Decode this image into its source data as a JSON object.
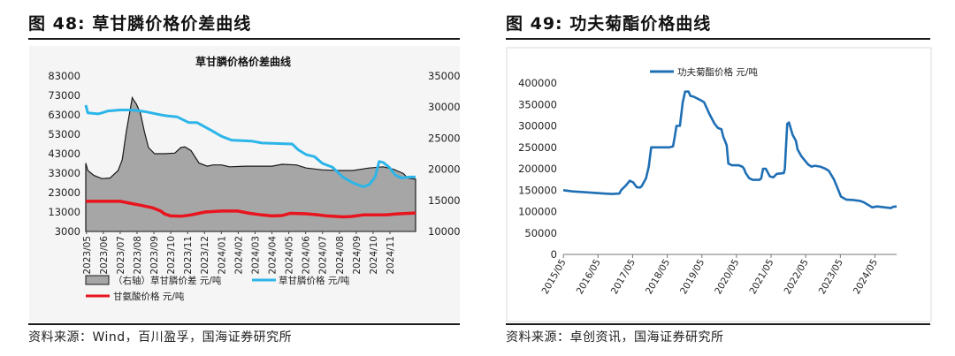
{
  "figures": [
    {
      "title": "图 48:  草甘膦价格价差曲线",
      "source": "资料来源：Wind，百川盈孚，国海证券研究所"
    },
    {
      "title": "图 49:  功夫菊酯价格曲线",
      "source": "资料来源：卓创资讯，国海证券研究所"
    }
  ],
  "chart_data": [
    {
      "type": "area",
      "title": "草甘膦价格价差曲线",
      "x_categories": [
        "2023/05",
        "2023/06",
        "2023/07",
        "2023/08",
        "2023/09",
        "2023/10",
        "2023/11",
        "2023/12",
        "2024/01",
        "2024/02",
        "2024/03",
        "2024/04",
        "2024/05",
        "2024/06",
        "2024/07",
        "2024/08",
        "2024/09",
        "2024/10",
        "2024/11"
      ],
      "x_range": [
        2023.33,
        2024.96
      ],
      "left_axis": {
        "ticks": [
          "83000",
          "73000",
          "63000",
          "53000",
          "43000",
          "33000",
          "23000",
          "13000",
          "3000"
        ],
        "ylim": [
          3000,
          83000
        ]
      },
      "right_axis": {
        "ticks": [
          "35000",
          "30000",
          "25000",
          "20000",
          "15000",
          "10000"
        ],
        "ylim": [
          10000,
          35000
        ]
      },
      "legend_position": "bottom",
      "series": [
        {
          "name": "（右轴）草甘膦价差  元/吨",
          "axis": "right",
          "style": "area",
          "color": "#a6a6a6",
          "points": [
            [
              2023.33,
              21000
            ],
            [
              2023.34,
              19800
            ],
            [
              2023.37,
              19000
            ],
            [
              2023.41,
              18500
            ],
            [
              2023.45,
              18600
            ],
            [
              2023.49,
              19800
            ],
            [
              2023.51,
              21500
            ],
            [
              2023.53,
              26000
            ],
            [
              2023.56,
              31500
            ],
            [
              2023.565,
              31200
            ],
            [
              2023.58,
              30500
            ],
            [
              2023.6,
              29000
            ],
            [
              2023.62,
              26000
            ],
            [
              2023.64,
              23500
            ],
            [
              2023.67,
              22500
            ],
            [
              2023.72,
              22500
            ],
            [
              2023.77,
              22600
            ],
            [
              2023.8,
              23500
            ],
            [
              2023.82,
              23600
            ],
            [
              2023.85,
              23000
            ],
            [
              2023.89,
              21000
            ],
            [
              2023.93,
              20500
            ],
            [
              2023.96,
              20700
            ],
            [
              2024.0,
              20700
            ],
            [
              2024.04,
              20400
            ],
            [
              2024.12,
              20500
            ],
            [
              2024.25,
              20500
            ],
            [
              2024.3,
              20800
            ],
            [
              2024.37,
              20700
            ],
            [
              2024.42,
              20200
            ],
            [
              2024.5,
              19900
            ],
            [
              2024.58,
              19800
            ],
            [
              2024.65,
              19800
            ],
            [
              2024.73,
              20200
            ],
            [
              2024.8,
              20400
            ],
            [
              2024.85,
              20000
            ],
            [
              2024.9,
              19300
            ],
            [
              2024.92,
              18600
            ],
            [
              2024.96,
              18400
            ]
          ]
        },
        {
          "name": "草甘膦价格  元/吨",
          "axis": "left",
          "style": "line",
          "color": "#2cb5e8",
          "points": [
            [
              2023.33,
              68000
            ],
            [
              2023.34,
              64000
            ],
            [
              2023.39,
              63500
            ],
            [
              2023.41,
              64000
            ],
            [
              2023.44,
              65000
            ],
            [
              2023.5,
              65500
            ],
            [
              2023.56,
              65500
            ],
            [
              2023.6,
              65000
            ],
            [
              2023.63,
              64500
            ],
            [
              2023.7,
              63000
            ],
            [
              2023.73,
              62500
            ],
            [
              2023.78,
              62000
            ],
            [
              2023.84,
              59000
            ],
            [
              2023.88,
              59000
            ],
            [
              2023.95,
              55000
            ],
            [
              2024.0,
              52000
            ],
            [
              2024.05,
              50000
            ],
            [
              2024.15,
              49500
            ],
            [
              2024.2,
              48500
            ],
            [
              2024.35,
              48000
            ],
            [
              2024.38,
              45000
            ],
            [
              2024.42,
              42500
            ],
            [
              2024.46,
              41500
            ],
            [
              2024.5,
              38000
            ],
            [
              2024.55,
              36000
            ],
            [
              2024.6,
              31000
            ],
            [
              2024.65,
              28000
            ],
            [
              2024.7,
              26000
            ],
            [
              2024.73,
              27000
            ],
            [
              2024.76,
              31000
            ],
            [
              2024.78,
              39000
            ],
            [
              2024.8,
              38500
            ],
            [
              2024.83,
              36000
            ],
            [
              2024.86,
              32000
            ],
            [
              2024.89,
              30500
            ],
            [
              2024.93,
              31000
            ],
            [
              2024.96,
              31000
            ]
          ]
        },
        {
          "name": "甘氨酸价格  元/吨",
          "axis": "left",
          "style": "line",
          "color": "#e8141e",
          "points": [
            [
              2023.33,
              18500
            ],
            [
              2023.5,
              18500
            ],
            [
              2023.55,
              17500
            ],
            [
              2023.6,
              16500
            ],
            [
              2023.66,
              15200
            ],
            [
              2023.7,
              13500
            ],
            [
              2023.72,
              12000
            ],
            [
              2023.75,
              11000
            ],
            [
              2023.8,
              10800
            ],
            [
              2023.85,
              11500
            ],
            [
              2023.92,
              13000
            ],
            [
              2024.0,
              13500
            ],
            [
              2024.08,
              13500
            ],
            [
              2024.14,
              12300
            ],
            [
              2024.2,
              11500
            ],
            [
              2024.25,
              11000
            ],
            [
              2024.3,
              11200
            ],
            [
              2024.34,
              12300
            ],
            [
              2024.42,
              12100
            ],
            [
              2024.48,
              11500
            ],
            [
              2024.52,
              11000
            ],
            [
              2024.6,
              10500
            ],
            [
              2024.64,
              10700
            ],
            [
              2024.7,
              11500
            ],
            [
              2024.82,
              11600
            ],
            [
              2024.86,
              12000
            ],
            [
              2024.96,
              12500
            ]
          ]
        }
      ]
    },
    {
      "type": "line",
      "title": "",
      "x_categories": [
        "2015/05",
        "2016/05",
        "2017/05",
        "2018/05",
        "2019/05",
        "2020/05",
        "2021/05",
        "2022/05",
        "2023/05",
        "2024/05"
      ],
      "x_range": [
        2015.33,
        2024.96
      ],
      "y_ticks": [
        "400000",
        "350000",
        "300000",
        "250000",
        "200000",
        "150000",
        "100000",
        "50000",
        "0"
      ],
      "ylim": [
        0,
        400000
      ],
      "legend_position": "top",
      "series": [
        {
          "name": "功夫菊酯价格  元/吨",
          "color": "#1f6fb5",
          "points": [
            [
              2015.33,
              150000
            ],
            [
              2015.6,
              147000
            ],
            [
              2016.0,
              145000
            ],
            [
              2016.5,
              142000
            ],
            [
              2016.75,
              141000
            ],
            [
              2016.95,
              142000
            ],
            [
              2017.0,
              150000
            ],
            [
              2017.15,
              162000
            ],
            [
              2017.25,
              172000
            ],
            [
              2017.35,
              168000
            ],
            [
              2017.45,
              157000
            ],
            [
              2017.55,
              156000
            ],
            [
              2017.6,
              160000
            ],
            [
              2017.72,
              178000
            ],
            [
              2017.8,
              205000
            ],
            [
              2017.87,
              250000
            ],
            [
              2018.0,
              250000
            ],
            [
              2018.4,
              250000
            ],
            [
              2018.5,
              252000
            ],
            [
              2018.55,
              275000
            ],
            [
              2018.6,
              300000
            ],
            [
              2018.7,
              300000
            ],
            [
              2018.78,
              355000
            ],
            [
              2018.85,
              380000
            ],
            [
              2018.95,
              380000
            ],
            [
              2019.0,
              370000
            ],
            [
              2019.1,
              368000
            ],
            [
              2019.3,
              360000
            ],
            [
              2019.4,
              355000
            ],
            [
              2019.55,
              328000
            ],
            [
              2019.7,
              305000
            ],
            [
              2019.8,
              295000
            ],
            [
              2019.9,
              292000
            ],
            [
              2019.95,
              275000
            ],
            [
              2020.05,
              255000
            ],
            [
              2020.1,
              212000
            ],
            [
              2020.2,
              208000
            ],
            [
              2020.4,
              208000
            ],
            [
              2020.5,
              205000
            ],
            [
              2020.55,
              200000
            ],
            [
              2020.6,
              190000
            ],
            [
              2020.7,
              178000
            ],
            [
              2020.8,
              174000
            ],
            [
              2021.0,
              174000
            ],
            [
              2021.05,
              178000
            ],
            [
              2021.1,
              200000
            ],
            [
              2021.18,
              200000
            ],
            [
              2021.3,
              182000
            ],
            [
              2021.4,
              180000
            ],
            [
              2021.5,
              188000
            ],
            [
              2021.7,
              190000
            ],
            [
              2021.73,
              200000
            ],
            [
              2021.76,
              245000
            ],
            [
              2021.8,
              305000
            ],
            [
              2021.85,
              308000
            ],
            [
              2021.88,
              300000
            ],
            [
              2021.95,
              280000
            ],
            [
              2022.05,
              265000
            ],
            [
              2022.1,
              245000
            ],
            [
              2022.2,
              230000
            ],
            [
              2022.3,
              220000
            ],
            [
              2022.4,
              210000
            ],
            [
              2022.5,
              205000
            ],
            [
              2022.6,
              207000
            ],
            [
              2022.75,
              205000
            ],
            [
              2022.9,
              200000
            ],
            [
              2023.0,
              195000
            ],
            [
              2023.15,
              175000
            ],
            [
              2023.25,
              155000
            ],
            [
              2023.35,
              135000
            ],
            [
              2023.5,
              128000
            ],
            [
              2023.7,
              127000
            ],
            [
              2023.9,
              125000
            ],
            [
              2024.0,
              122000
            ],
            [
              2024.15,
              115000
            ],
            [
              2024.25,
              110000
            ],
            [
              2024.4,
              112000
            ],
            [
              2024.6,
              110000
            ],
            [
              2024.8,
              108000
            ],
            [
              2024.85,
              111000
            ],
            [
              2024.96,
              112000
            ]
          ]
        }
      ]
    }
  ]
}
